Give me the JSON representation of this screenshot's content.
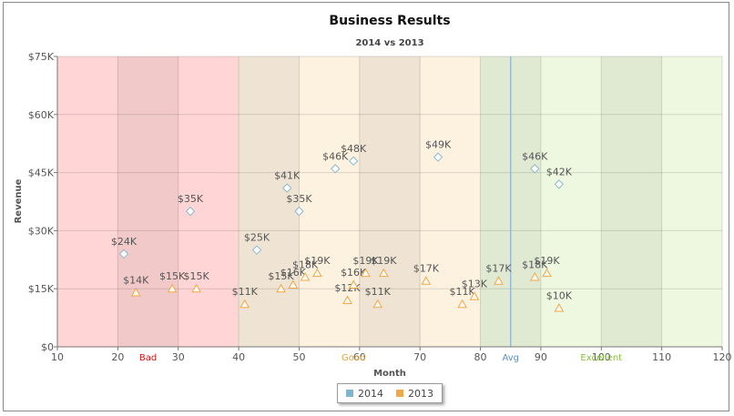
{
  "chart_data": {
    "type": "scatter",
    "title": "Business Results",
    "subtitle": "2014 vs 2013",
    "xlabel": "Month",
    "ylabel": "Revenue",
    "xlim": [
      10,
      120
    ],
    "ylim": [
      0,
      75000
    ],
    "x_ticks": [
      10,
      20,
      30,
      40,
      50,
      60,
      70,
      80,
      90,
      100,
      110,
      120
    ],
    "y_ticks": [
      {
        "value": 0,
        "label": "$0"
      },
      {
        "value": 15000,
        "label": "$15K"
      },
      {
        "value": 30000,
        "label": "$30K"
      },
      {
        "value": 45000,
        "label": "$45K"
      },
      {
        "value": 60000,
        "label": "$60K"
      },
      {
        "value": 75000,
        "label": "$75K"
      }
    ],
    "grid": true,
    "zones": [
      {
        "label": "Bad",
        "from": 10,
        "to": 40,
        "fill": "#ffd5d5",
        "label_color": "#cc1111",
        "label_x": 25
      },
      {
        "label": "Good",
        "from": 40,
        "to": 80,
        "fill": "#fdf2e0",
        "label_color": "#e3a33a",
        "label_x": 59
      },
      {
        "label": "Excellent",
        "from": 80,
        "to": 120,
        "fill": "#eef8e0",
        "label_color": "#8ac041",
        "label_x": 100
      }
    ],
    "shaded_bands": [
      [
        20,
        30
      ],
      [
        40,
        50
      ],
      [
        60,
        70
      ],
      [
        80,
        90
      ],
      [
        100,
        110
      ]
    ],
    "average_line": {
      "label": "Avg",
      "x": 85,
      "color": "#8fb3d6"
    },
    "series": [
      {
        "name": "2014",
        "marker": "diamond",
        "color": "#8cb8d0",
        "points": [
          {
            "x": 21,
            "y": 24000,
            "label": "$24K"
          },
          {
            "x": 32,
            "y": 35000,
            "label": "$35K"
          },
          {
            "x": 43,
            "y": 25000,
            "label": "$25K"
          },
          {
            "x": 48,
            "y": 41000,
            "label": "$41K"
          },
          {
            "x": 50,
            "y": 35000,
            "label": "$35K"
          },
          {
            "x": 56,
            "y": 46000,
            "label": "$46K"
          },
          {
            "x": 59,
            "y": 48000,
            "label": "$48K"
          },
          {
            "x": 73,
            "y": 49000,
            "label": "$49K"
          },
          {
            "x": 89,
            "y": 46000,
            "label": "$46K"
          },
          {
            "x": 93,
            "y": 42000,
            "label": "$42K"
          }
        ]
      },
      {
        "name": "2013",
        "marker": "triangle",
        "color": "#f0a848",
        "points": [
          {
            "x": 23,
            "y": 14000,
            "label": "$14K"
          },
          {
            "x": 29,
            "y": 15000,
            "label": "$15K"
          },
          {
            "x": 33,
            "y": 15000,
            "label": "$15K"
          },
          {
            "x": 41,
            "y": 11000,
            "label": "$11K"
          },
          {
            "x": 47,
            "y": 15000,
            "label": "$15K"
          },
          {
            "x": 49,
            "y": 16000,
            "label": "$16K"
          },
          {
            "x": 51,
            "y": 18000,
            "label": "$18K"
          },
          {
            "x": 53,
            "y": 19000,
            "label": "$19K"
          },
          {
            "x": 58,
            "y": 12000,
            "label": "$12K"
          },
          {
            "x": 59,
            "y": 16000,
            "label": "$16K"
          },
          {
            "x": 61,
            "y": 19000,
            "label": "$19K"
          },
          {
            "x": 63,
            "y": 11000,
            "label": "$11K"
          },
          {
            "x": 64,
            "y": 19000,
            "label": "$19K"
          },
          {
            "x": 71,
            "y": 17000,
            "label": "$17K"
          },
          {
            "x": 77,
            "y": 11000,
            "label": "$11K"
          },
          {
            "x": 79,
            "y": 13000,
            "label": "$13K"
          },
          {
            "x": 83,
            "y": 17000,
            "label": "$17K"
          },
          {
            "x": 89,
            "y": 18000,
            "label": "$18K"
          },
          {
            "x": 91,
            "y": 19000,
            "label": "$19K"
          },
          {
            "x": 93,
            "y": 10000,
            "label": "$10K"
          }
        ]
      }
    ]
  }
}
